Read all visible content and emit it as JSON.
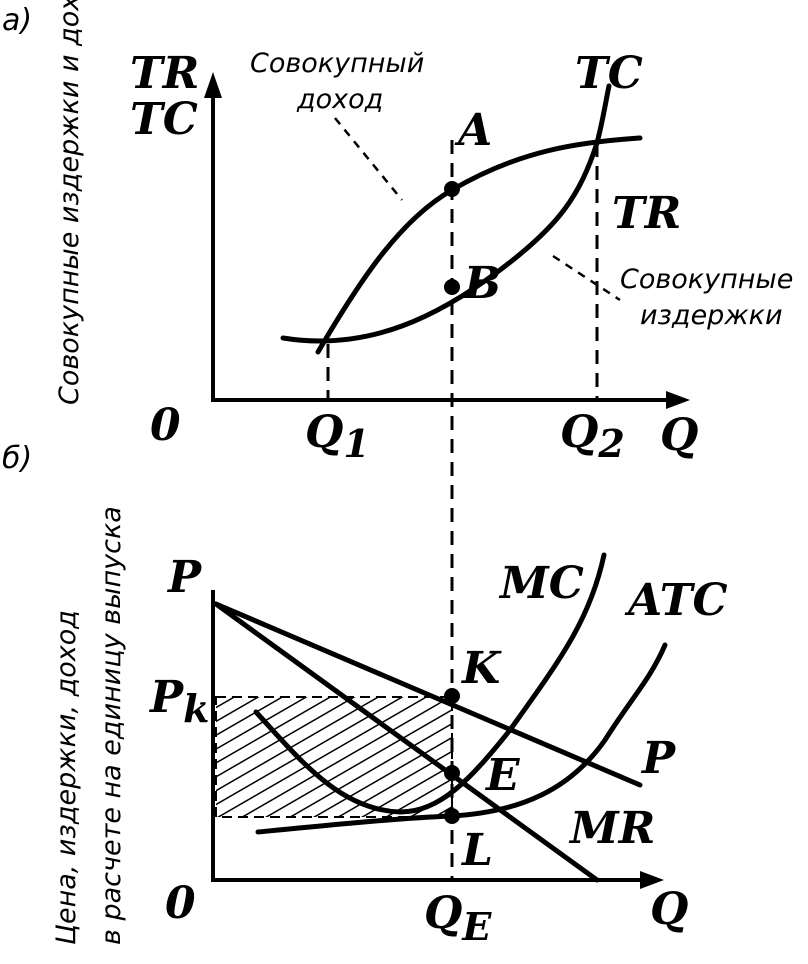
{
  "panel_a": {
    "label": "a)",
    "y_axis_label": "Совокупные издержки и доход",
    "y_axis_tr": "TR",
    "y_axis_tc": "TC",
    "origin": "0",
    "x_axis": "Q",
    "q1": "Q",
    "q1_sub": "1",
    "q2": "Q",
    "q2_sub": "2",
    "callout_revenue_line1": "Совокупный",
    "callout_revenue_line2": "доход",
    "callout_costs_line1": "Совокупные",
    "callout_costs_line2": "издержки",
    "curve_tc": "TC",
    "curve_tr": "TR",
    "point_a": "A",
    "point_b": "B"
  },
  "panel_b": {
    "label": "б)",
    "y_axis_label_line1": "Цена, издержки, доход",
    "y_axis_label_line2": "в расчете на единицу выпуска",
    "y_axis": "P",
    "pk": "P",
    "pk_sub": "k",
    "origin": "0",
    "x_axis": "Q",
    "qe": "Q",
    "qe_sub": "E",
    "curve_mc": "MC",
    "curve_atc": "ATC",
    "curve_p": "P",
    "curve_mr": "MR",
    "point_k": "K",
    "point_e": "E",
    "point_l": "L"
  }
}
